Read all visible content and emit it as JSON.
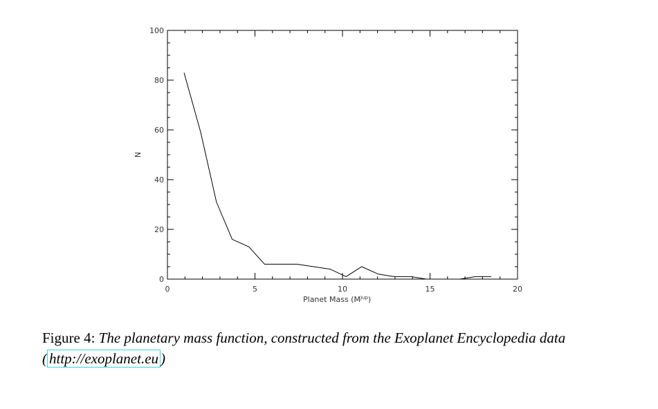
{
  "chart_data": {
    "type": "line",
    "xlabel": "Planet Mass (M",
    "xlabel_sup": "Jup",
    "xlabel_close": ")",
    "ylabel": "N",
    "xlim": [
      0,
      20
    ],
    "ylim": [
      0,
      100
    ],
    "xticks": [
      "0",
      "5",
      "10",
      "15",
      "20"
    ],
    "yticks": [
      "0",
      "20",
      "40",
      "60",
      "80",
      "100"
    ],
    "grid": false,
    "series": [
      {
        "x": [
          0.95,
          1.9,
          2.8,
          3.7,
          4.65,
          5.55,
          6.5,
          7.4,
          8.35,
          9.3,
          10.2,
          11.1,
          12.05,
          12.95,
          13.9,
          14.8,
          15.75,
          16.7,
          17.6,
          18.5
        ],
        "y": [
          83,
          59,
          31,
          16,
          13,
          6,
          6,
          6,
          5,
          4,
          1,
          5,
          2,
          1,
          1,
          0,
          0,
          0,
          1,
          1
        ]
      }
    ]
  },
  "caption": {
    "label": "Figure 4:",
    "text": "The planetary mass function, constructed from the Exoplanet Encyclopedia data (",
    "link": "http://exoplanet.eu",
    "end": ")"
  }
}
